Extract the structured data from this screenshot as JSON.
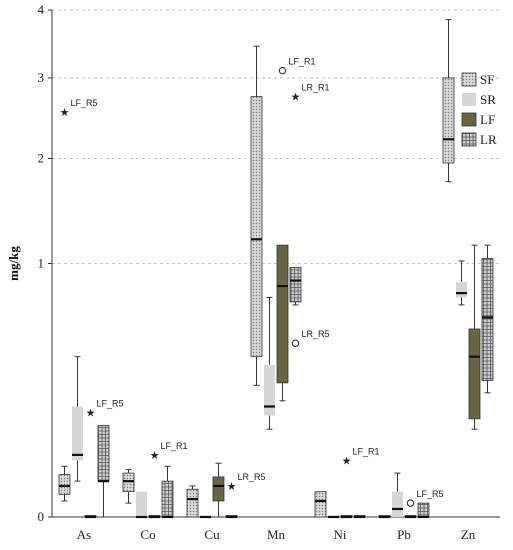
{
  "chart_data": {
    "type": "box",
    "title": "",
    "ylabel": "mg/kg",
    "xlabel": "",
    "yscale": "sqrt",
    "ylim": [
      0,
      4
    ],
    "yticks": [
      0,
      1,
      2,
      3,
      4
    ],
    "grid": "horizontal-dashed",
    "legend_position": "top-right",
    "categories": [
      "As",
      "Co",
      "Cu",
      "Mn",
      "Ni",
      "Pb",
      "Zn"
    ],
    "series": [
      {
        "name": "SF",
        "pattern": "dots",
        "fill": "#cfcfcf",
        "boxes": [
          {
            "cat": "As",
            "whislo": 0.004,
            "q1": 0.008,
            "med": 0.015,
            "q3": 0.028,
            "whishi": 0.04
          },
          {
            "cat": "Co",
            "whislo": 0.003,
            "q1": 0.01,
            "med": 0.02,
            "q3": 0.03,
            "whishi": 0.035
          },
          {
            "cat": "Cu",
            "whislo": 0.0,
            "q1": 0.0,
            "med": 0.005,
            "q3": 0.012,
            "whishi": 0.015
          },
          {
            "cat": "Mn",
            "whislo": 0.27,
            "q1": 0.4,
            "med": 1.2,
            "q3": 2.75,
            "whishi": 3.45
          },
          {
            "cat": "Ni",
            "whislo": 0.0,
            "q1": 0.0,
            "med": 0.004,
            "q3": 0.01,
            "whishi": 0.01
          },
          {
            "cat": "Pb",
            "whislo": 0.0,
            "q1": 0.0,
            "med": 0.0,
            "q3": 0.0,
            "whishi": 0.0
          },
          {
            "cat": "Zn",
            "whislo": 1.75,
            "q1": 1.95,
            "med": 2.22,
            "q3": 3.0,
            "whishi": 3.85
          }
        ]
      },
      {
        "name": "SR",
        "pattern": "solid",
        "fill": "#d6d6d6",
        "boxes": [
          {
            "cat": "As",
            "whislo": 0.02,
            "q1": 0.05,
            "med": 0.06,
            "q3": 0.19,
            "whishi": 0.4
          },
          {
            "cat": "Co",
            "whislo": 0.0,
            "q1": 0.0,
            "med": 0.0,
            "q3": 0.01,
            "whishi": 0.01
          },
          {
            "cat": "Cu",
            "whislo": 0.0,
            "q1": 0.0,
            "med": 0.0,
            "q3": 0.0,
            "whishi": 0.0
          },
          {
            "cat": "Mn",
            "whislo": 0.12,
            "q1": 0.16,
            "med": 0.19,
            "q3": 0.36,
            "whishi": 0.75
          },
          {
            "cat": "Ni",
            "whislo": 0.0,
            "q1": 0.0,
            "med": 0.0,
            "q3": 0.0,
            "whishi": 0.0
          },
          {
            "cat": "Pb",
            "whislo": 0.0,
            "q1": 0.0,
            "med": 0.001,
            "q3": 0.01,
            "whishi": 0.03
          },
          {
            "cat": "Zn",
            "whislo": 0.7,
            "q1": 0.75,
            "med": 0.78,
            "q3": 0.86,
            "whishi": 1.02
          }
        ]
      },
      {
        "name": "LF",
        "pattern": "solid",
        "fill": "#6a6541",
        "boxes": [
          {
            "cat": "As",
            "whislo": 0.0,
            "q1": 0.0,
            "med": 0.0,
            "q3": 0.0,
            "whishi": 0.0
          },
          {
            "cat": "Co",
            "whislo": 0.0,
            "q1": 0.0,
            "med": 0.0,
            "q3": 0.0,
            "whishi": 0.0
          },
          {
            "cat": "Cu",
            "whislo": 0.0,
            "q1": 0.004,
            "med": 0.015,
            "q3": 0.025,
            "whishi": 0.045
          },
          {
            "cat": "Mn",
            "whislo": 0.21,
            "q1": 0.28,
            "med": 0.83,
            "q3": 1.15,
            "whishi": 1.15
          },
          {
            "cat": "Ni",
            "whislo": 0.0,
            "q1": 0.0,
            "med": 0.0,
            "q3": 0.0,
            "whishi": 0.0
          },
          {
            "cat": "Pb",
            "whislo": 0.0,
            "q1": 0.0,
            "med": 0.0,
            "q3": 0.0,
            "whishi": 0.0
          },
          {
            "cat": "Zn",
            "whislo": 0.12,
            "q1": 0.15,
            "med": 0.4,
            "q3": 0.55,
            "whishi": 1.15
          }
        ]
      },
      {
        "name": "LR",
        "pattern": "grid",
        "fill": "#bcbcbc",
        "boxes": [
          {
            "cat": "As",
            "whislo": 0.0,
            "q1": 0.02,
            "med": 0.02,
            "q3": 0.13,
            "whishi": 0.13
          },
          {
            "cat": "Co",
            "whislo": 0.0,
            "q1": 0.0,
            "med": 0.0,
            "q3": 0.02,
            "whishi": 0.04
          },
          {
            "cat": "Cu",
            "whislo": 0.0,
            "q1": 0.0,
            "med": 0.0,
            "q3": 0.0,
            "whishi": 0.0
          },
          {
            "cat": "Mn",
            "whislo": 0.7,
            "q1": 0.72,
            "med": 0.87,
            "q3": 0.97,
            "whishi": 0.97
          },
          {
            "cat": "Ni",
            "whislo": 0.0,
            "q1": 0.0,
            "med": 0.0,
            "q3": 0.0,
            "whishi": 0.0
          },
          {
            "cat": "Pb",
            "whislo": 0.0,
            "q1": 0.0,
            "med": 0.0,
            "q3": 0.003,
            "whishi": 0.003
          },
          {
            "cat": "Zn",
            "whislo": 0.24,
            "q1": 0.29,
            "med": 0.62,
            "q3": 1.04,
            "whishi": 1.15
          }
        ]
      }
    ],
    "annotations": [
      {
        "text": "LF_R5",
        "cat": "As",
        "series": "SF",
        "y": 2.55,
        "marker": "star"
      },
      {
        "text": "LF_R5",
        "cat": "As",
        "series": "LF",
        "y": 0.17,
        "marker": "star"
      },
      {
        "text": "LF_R1",
        "cat": "Co",
        "series": "LF",
        "y": 0.06,
        "marker": "star"
      },
      {
        "text": "LR_R5",
        "cat": "Cu",
        "series": "LR",
        "y": 0.015,
        "marker": "star"
      },
      {
        "text": "LF_R1",
        "cat": "Mn",
        "series": "LF",
        "y": 3.1,
        "marker": "circle"
      },
      {
        "text": "LR_R1",
        "cat": "Mn",
        "series": "LR",
        "y": 2.75,
        "marker": "star"
      },
      {
        "text": "LR_R5",
        "cat": "Mn",
        "series": "LR",
        "y": 0.47,
        "marker": "circle"
      },
      {
        "text": "LF_R1",
        "cat": "Ni",
        "series": "LF",
        "y": 0.05,
        "marker": "star"
      },
      {
        "text": "LF_R5",
        "cat": "Pb",
        "series": "LF",
        "y": 0.003,
        "marker": "circle"
      }
    ]
  }
}
